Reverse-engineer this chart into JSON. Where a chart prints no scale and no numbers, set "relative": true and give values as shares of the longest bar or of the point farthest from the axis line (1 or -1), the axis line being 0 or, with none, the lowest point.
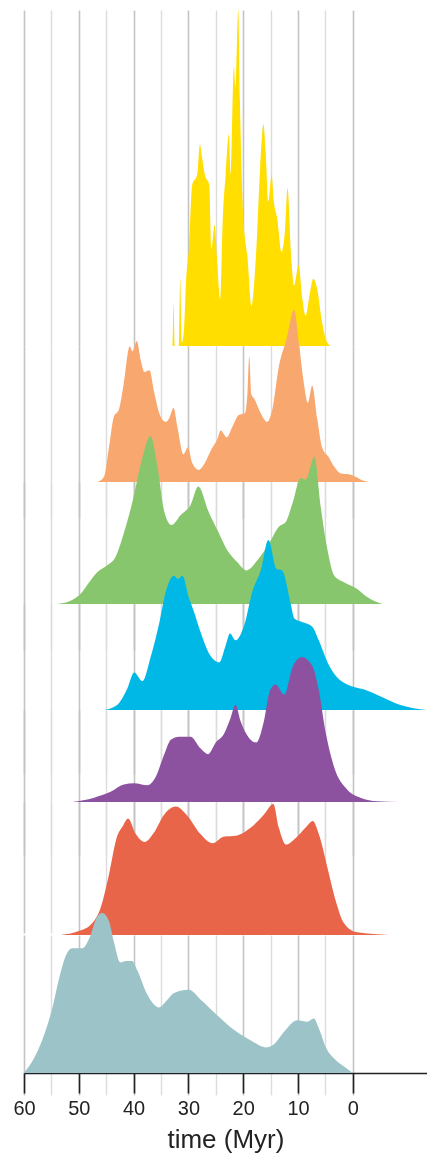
{
  "chart_data": [
    {
      "type": "area",
      "relative": true,
      "color": "#ffde00",
      "xlim": [
        60,
        -13.5
      ],
      "xticks": [
        60,
        {
          "value": 55,
          "label": null
        },
        50,
        {
          "value": 45,
          "label": null
        },
        40,
        {
          "value": 35,
          "label": null
        },
        30,
        {
          "value": 25,
          "label": null
        },
        20,
        {
          "value": 15,
          "label": null
        },
        10,
        {
          "value": 5,
          "label": null
        },
        0
      ],
      "grid": "x",
      "tick_labels": false,
      "x": [
        34.9,
        33.2,
        32.9,
        32.7,
        32.5,
        31.7,
        31.5,
        31.2,
        30.8,
        30.4,
        29.9,
        29.3,
        28.4,
        27.9,
        27.5,
        27.0,
        26.2,
        25.8,
        25.2,
        24.7,
        24.2,
        23.7,
        23.2,
        22.6,
        22.3,
        21.7,
        21.4,
        20.9,
        20.6,
        20.0,
        19.2,
        18.5,
        17.7,
        16.9,
        16.3,
        15.9,
        15.4,
        14.8,
        14.4,
        13.8,
        13.0,
        12.4,
        11.9,
        11.3,
        10.7,
        9.9,
        9.2,
        8.6,
        8.0,
        7.2,
        6.5,
        5.7,
        4.9,
        4.0,
        2.2
      ],
      "values": [
        0,
        0,
        0,
        0.125,
        0,
        0,
        0.2,
        0.01,
        0.05,
        0.2,
        0.29,
        0.48,
        0.51,
        0.6,
        0.56,
        0.51,
        0.48,
        0.29,
        0.36,
        0.24,
        0.14,
        0.39,
        0.51,
        0.63,
        0.51,
        0.83,
        0.77,
        1.0,
        0.73,
        0.39,
        0.26,
        0.12,
        0.26,
        0.53,
        0.66,
        0.58,
        0.43,
        0.51,
        0.43,
        0.38,
        0.28,
        0.34,
        0.47,
        0.28,
        0.18,
        0.24,
        0.14,
        0.09,
        0.14,
        0.2,
        0.17,
        0.08,
        0.02,
        0,
        0
      ]
    },
    {
      "type": "area",
      "relative": true,
      "color": "#f8a86f",
      "xlim": [
        60,
        -13.5
      ],
      "xticks": [
        60,
        {
          "value": 55,
          "label": null
        },
        50,
        {
          "value": 45,
          "label": null
        },
        40,
        {
          "value": 35,
          "label": null
        },
        30,
        {
          "value": 25,
          "label": null
        },
        20,
        {
          "value": 15,
          "label": null
        },
        10,
        {
          "value": 5,
          "label": null
        },
        0
      ],
      "grid": "x",
      "tick_labels": false,
      "x": [
        46.6,
        45.4,
        44.5,
        43.6,
        42.7,
        41.8,
        40.7,
        40.2,
        39.4,
        38.7,
        38.0,
        37.1,
        36.3,
        35.2,
        34.1,
        33.5,
        32.7,
        32.0,
        30.9,
        30.1,
        29.3,
        28.1,
        27.0,
        25.8,
        24.7,
        24.1,
        23.0,
        22.0,
        20.8,
        19.7,
        19.2,
        18.9,
        18.5,
        17.9,
        16.8,
        15.6,
        14.7,
        13.5,
        12.1,
        10.7,
        9.8,
        9.0,
        8.2,
        7.4,
        6.5,
        5.6,
        4.3,
        3.4,
        2.2,
        0.7,
        -0.5,
        -1.7,
        -3.0
      ],
      "values": [
        0,
        0.03,
        0.2,
        0.38,
        0.42,
        0.57,
        0.79,
        0.76,
        0.82,
        0.71,
        0.64,
        0.65,
        0.53,
        0.39,
        0.35,
        0.37,
        0.43,
        0.32,
        0.16,
        0.2,
        0.11,
        0.07,
        0.11,
        0.19,
        0.25,
        0.3,
        0.26,
        0.32,
        0.39,
        0.4,
        0.53,
        0.73,
        0.51,
        0.48,
        0.4,
        0.35,
        0.42,
        0.67,
        0.83,
        1.0,
        0.8,
        0.59,
        0.46,
        0.56,
        0.37,
        0.2,
        0.14,
        0.09,
        0.05,
        0.045,
        0.03,
        0.01,
        0
      ]
    },
    {
      "type": "area",
      "relative": true,
      "color": "#88c66e",
      "xlim": [
        60,
        -13.5
      ],
      "xticks": [
        60,
        {
          "value": 55,
          "label": null
        },
        50,
        {
          "value": 45,
          "label": null
        },
        40,
        {
          "value": 35,
          "label": null
        },
        30,
        {
          "value": 25,
          "label": null
        },
        20,
        {
          "value": 15,
          "label": null
        },
        10,
        {
          "value": 5,
          "label": null
        },
        0
      ],
      "grid": "x",
      "tick_labels": false,
      "x": [
        54.2,
        51.5,
        49.7,
        48.1,
        46.6,
        44.8,
        43.3,
        41.8,
        40.2,
        38.7,
        36.9,
        35.7,
        34.4,
        33.1,
        31.4,
        29.6,
        28.2,
        26.2,
        24.7,
        22.9,
        21.1,
        19.4,
        17.4,
        15.3,
        13.5,
        12.2,
        11.0,
        9.5,
        8.6,
        7.0,
        5.9,
        4.6,
        3.4,
        1.6,
        -0.8,
        -2.7,
        -5.4
      ],
      "values": [
        0,
        0.02,
        0.06,
        0.13,
        0.19,
        0.23,
        0.28,
        0.42,
        0.61,
        0.83,
        1.0,
        0.83,
        0.55,
        0.47,
        0.53,
        0.59,
        0.7,
        0.54,
        0.44,
        0.32,
        0.25,
        0.2,
        0.26,
        0.36,
        0.46,
        0.49,
        0.6,
        0.75,
        0.74,
        0.875,
        0.59,
        0.32,
        0.17,
        0.13,
        0.09,
        0.04,
        0
      ]
    },
    {
      "type": "area",
      "relative": true,
      "color": "#00b8e6",
      "xlim": [
        60,
        -13.5
      ],
      "xticks": [
        60,
        {
          "value": 55,
          "label": null
        },
        50,
        {
          "value": 45,
          "label": null
        },
        40,
        {
          "value": 35,
          "label": null
        },
        30,
        {
          "value": 25,
          "label": null
        },
        20,
        {
          "value": 15,
          "label": null
        },
        10,
        {
          "value": 5,
          "label": null
        },
        0
      ],
      "grid": "x",
      "tick_labels": false,
      "x": [
        45.4,
        43.0,
        41.1,
        39.9,
        38.4,
        36.9,
        35.4,
        34.1,
        32.6,
        31.9,
        31.1,
        29.9,
        29.0,
        27.8,
        26.0,
        24.4,
        23.2,
        22.4,
        21.4,
        19.8,
        18.3,
        16.8,
        15.4,
        13.9,
        12.9,
        11.3,
        10.7,
        9.5,
        7.4,
        6.2,
        4.6,
        2.8,
        1.0,
        -2.1,
        -5.1,
        -8.7,
        -13.5
      ],
      "values": [
        0,
        0.03,
        0.13,
        0.22,
        0.17,
        0.31,
        0.5,
        0.7,
        0.79,
        0.77,
        0.79,
        0.66,
        0.58,
        0.46,
        0.32,
        0.28,
        0.38,
        0.45,
        0.41,
        0.5,
        0.7,
        0.82,
        1.0,
        0.83,
        0.82,
        0.62,
        0.54,
        0.52,
        0.49,
        0.41,
        0.28,
        0.19,
        0.15,
        0.12,
        0.08,
        0.03,
        0
      ]
    },
    {
      "type": "area",
      "relative": true,
      "color": "#8c529f",
      "xlim": [
        60,
        -13.5
      ],
      "xticks": [
        60,
        {
          "value": 55,
          "label": null
        },
        50,
        {
          "value": 45,
          "label": null
        },
        40,
        {
          "value": 35,
          "label": null
        },
        30,
        {
          "value": 25,
          "label": null
        },
        20,
        {
          "value": 15,
          "label": null
        },
        10,
        {
          "value": 5,
          "label": null
        },
        0
      ],
      "grid": "x",
      "tick_labels": false,
      "x": [
        51.2,
        47.2,
        44.2,
        41.8,
        39.9,
        37.5,
        36.0,
        34.4,
        33.2,
        31.7,
        29.6,
        27.8,
        26.4,
        25.0,
        23.5,
        22.3,
        21.4,
        20.5,
        18.9,
        17.6,
        16.2,
        15.1,
        14.1,
        12.5,
        11.0,
        9.3,
        7.4,
        6.2,
        4.9,
        3.4,
        1.0,
        -1.4,
        -4.5,
        -8.4
      ],
      "values": [
        0,
        0.03,
        0.07,
        0.12,
        0.13,
        0.115,
        0.17,
        0.33,
        0.43,
        0.45,
        0.45,
        0.37,
        0.33,
        0.41,
        0.47,
        0.58,
        0.67,
        0.56,
        0.44,
        0.41,
        0.56,
        0.77,
        0.81,
        0.74,
        0.93,
        1.0,
        0.94,
        0.77,
        0.47,
        0.24,
        0.085,
        0.03,
        0.005,
        0
      ]
    },
    {
      "type": "area",
      "relative": true,
      "color": "#e8654a",
      "xlim": [
        60,
        -13.5
      ],
      "xticks": [
        60,
        {
          "value": 55,
          "label": null
        },
        50,
        {
          "value": 45,
          "label": null
        },
        40,
        {
          "value": 35,
          "label": null
        },
        30,
        {
          "value": 25,
          "label": null
        },
        20,
        {
          "value": 15,
          "label": null
        },
        10,
        {
          "value": 5,
          "label": null
        },
        0
      ],
      "grid": "x",
      "tick_labels": false,
      "x": [
        53.3,
        50.0,
        47.8,
        46.0,
        44.5,
        43.1,
        42.0,
        41.0,
        39.6,
        38.0,
        36.3,
        34.4,
        32.3,
        30.2,
        27.8,
        25.6,
        23.6,
        21.1,
        18.6,
        16.2,
        14.5,
        13.5,
        12.2,
        10.4,
        8.6,
        7.3,
        6.2,
        4.6,
        3.1,
        1.6,
        -0.8,
        -6.6
      ],
      "values": [
        0,
        0.03,
        0.08,
        0.21,
        0.46,
        0.74,
        0.83,
        0.89,
        0.77,
        0.71,
        0.78,
        0.92,
        0.98,
        0.91,
        0.77,
        0.7,
        0.75,
        0.76,
        0.82,
        0.92,
        1.0,
        0.82,
        0.69,
        0.74,
        0.82,
        0.87,
        0.77,
        0.51,
        0.26,
        0.09,
        0.02,
        0
      ]
    },
    {
      "type": "area",
      "relative": true,
      "color": "#9cc3c7",
      "xlim": [
        60,
        -13.5
      ],
      "xticks": [
        60,
        {
          "value": 55,
          "label": null
        },
        50,
        {
          "value": 45,
          "label": null
        },
        40,
        {
          "value": 35,
          "label": null
        },
        30,
        {
          "value": 25,
          "label": null
        },
        20,
        {
          "value": 15,
          "label": null
        },
        10,
        {
          "value": 5,
          "label": null
        },
        0
      ],
      "grid": "x",
      "tick_labels": "x",
      "xlabel": "time (Myr)",
      "x": [
        60,
        58.2,
        56.3,
        54.8,
        53.6,
        52.4,
        51.2,
        49.3,
        48.1,
        46.6,
        45.7,
        44.5,
        43.6,
        42.4,
        41.4,
        40.3,
        39.3,
        37.5,
        35.4,
        33.8,
        32.6,
        29.9,
        27.8,
        24.7,
        21.7,
        18.9,
        15.9,
        14.4,
        12.5,
        10.1,
        8.3,
        7.1,
        6.2,
        4.9,
        3.4,
        1.6,
        0
      ],
      "values": [
        0,
        0.09,
        0.24,
        0.41,
        0.59,
        0.73,
        0.78,
        0.78,
        0.84,
        0.98,
        1.0,
        0.95,
        0.82,
        0.69,
        0.7,
        0.7,
        0.64,
        0.49,
        0.41,
        0.46,
        0.5,
        0.52,
        0.46,
        0.36,
        0.27,
        0.21,
        0.16,
        0.18,
        0.26,
        0.33,
        0.32,
        0.34,
        0.28,
        0.16,
        0.09,
        0.04,
        0
      ]
    }
  ]
}
